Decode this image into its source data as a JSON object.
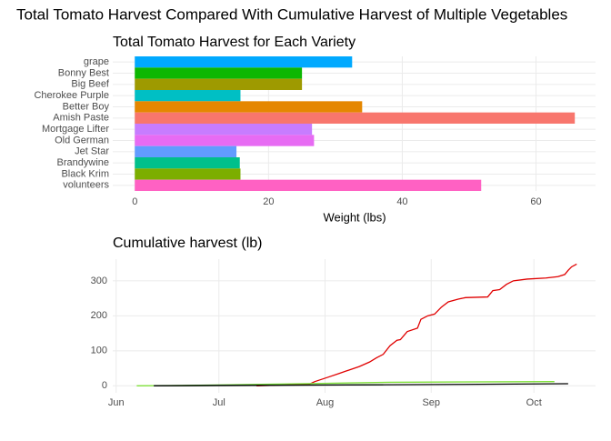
{
  "title": "Total Tomato Harvest Compared With Cumulative Harvest of Multiple Vegetables",
  "chart_data": [
    {
      "type": "bar",
      "orientation": "horizontal",
      "title": "Total Tomato Harvest for Each Variety",
      "x_label": "Weight (lbs)",
      "categories": [
        "grape",
        "Bonny Best",
        "Big Beef",
        "Cherokee Purple",
        "Better Boy",
        "Amish Paste",
        "Mortgage Lifter",
        "Old German",
        "Jet Star",
        "Brandywine",
        "Black Krim",
        "volunteers"
      ],
      "values": [
        32.5,
        25,
        25,
        15.8,
        34,
        65.8,
        26.5,
        26.8,
        15.2,
        15.7,
        15.8,
        51.8
      ],
      "colors": [
        "#00a9ff",
        "#0cb702",
        "#9e9a00",
        "#00bfc4",
        "#e58700",
        "#f8766d",
        "#c77cff",
        "#e76bf3",
        "#619cff",
        "#00c08b",
        "#7cae00",
        "#ff61c3"
      ],
      "xlim": [
        -3.3,
        68.9
      ],
      "xticks": [
        0,
        20,
        40,
        60
      ],
      "grid": true
    },
    {
      "type": "line",
      "title": "Cumulative harvest (lb)",
      "xlim": [
        -1,
        140
      ],
      "xticks": [
        {
          "value": 0,
          "label": "Jun"
        },
        {
          "value": 30,
          "label": "Jul"
        },
        {
          "value": 61,
          "label": "Aug"
        },
        {
          "value": 92,
          "label": "Sep"
        },
        {
          "value": 122,
          "label": "Oct"
        }
      ],
      "ylim": [
        -20,
        362
      ],
      "yticks": [
        0,
        100,
        200,
        300
      ],
      "grid": true,
      "series": [
        {
          "color": "#e00000",
          "x": [
            41,
            56.5,
            58,
            62,
            65,
            68,
            71,
            74,
            76,
            78,
            80,
            82,
            83,
            85,
            88,
            89,
            91,
            93,
            95,
            97,
            100,
            102,
            108.5,
            110,
            112,
            114,
            116,
            120,
            125.5,
            129,
            131,
            132,
            133,
            134.5
          ],
          "values": [
            0,
            5,
            12,
            25,
            35,
            45,
            55,
            68,
            80,
            90,
            115,
            130,
            132,
            155,
            165,
            190,
            200,
            205,
            225,
            240,
            248,
            252,
            254,
            272,
            275,
            290,
            300,
            305,
            308,
            312,
            318,
            330,
            340,
            348
          ]
        },
        {
          "color": "#7fe03a",
          "x": [
            6,
            20,
            40,
            60,
            80,
            100,
            128
          ],
          "values": [
            0,
            1,
            4,
            7,
            10,
            11,
            12
          ]
        },
        {
          "color": "#1a7a1a",
          "x": [
            11,
            40,
            78
          ],
          "values": [
            0,
            2,
            3
          ]
        },
        {
          "color": "#000000",
          "x": [
            11,
            60,
            100,
            132
          ],
          "values": [
            0,
            2,
            4,
            6
          ]
        }
      ]
    }
  ]
}
